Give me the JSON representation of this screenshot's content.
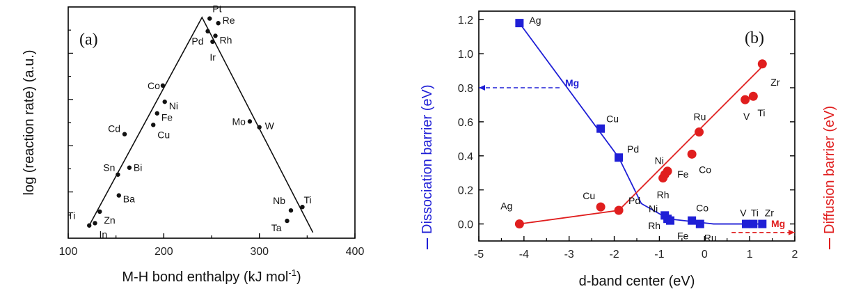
{
  "chart_data": [
    {
      "type": "scatter",
      "panel_label": "(a)",
      "title": "",
      "xlabel_main": "M-H bond enthalpy (kJ mol",
      "xlabel_sup": "-1",
      "xlabel_end": ")",
      "ylabel": "log (reaction rate) (a.u.)",
      "xlim": [
        100,
        400
      ],
      "ylim": [
        0,
        10
      ],
      "xticks": [
        100,
        200,
        300,
        400
      ],
      "volcano_line": [
        [
          122,
          0.55
        ],
        [
          240,
          9.55
        ],
        [
          356,
          0.25
        ]
      ],
      "points": [
        {
          "label": "Ti",
          "x": 122,
          "y": 0.55
        },
        {
          "label": "In",
          "x": 128,
          "y": 0.65
        },
        {
          "label": "Zn",
          "x": 133,
          "y": 1.15
        },
        {
          "label": "Ba",
          "x": 153,
          "y": 1.85
        },
        {
          "label": "Sn",
          "x": 152,
          "y": 2.75
        },
        {
          "label": "Bi",
          "x": 164,
          "y": 3.05
        },
        {
          "label": "Cd",
          "x": 159,
          "y": 4.5
        },
        {
          "label": "Cu",
          "x": 189,
          "y": 4.9
        },
        {
          "label": "Fe",
          "x": 193,
          "y": 5.4
        },
        {
          "label": "Ni",
          "x": 201,
          "y": 5.9
        },
        {
          "label": "Co",
          "x": 199,
          "y": 6.6
        },
        {
          "label": "Pt",
          "x": 248,
          "y": 9.5
        },
        {
          "label": "Re",
          "x": 257,
          "y": 9.3
        },
        {
          "label": "Pd",
          "x": 246,
          "y": 8.95
        },
        {
          "label": "Rh",
          "x": 254,
          "y": 8.75
        },
        {
          "label": "Ir",
          "x": 251,
          "y": 8.5
        },
        {
          "label": "Mo",
          "x": 290,
          "y": 5.05
        },
        {
          "label": "W",
          "x": 300,
          "y": 4.8
        },
        {
          "label": "Nb",
          "x": 333,
          "y": 1.2
        },
        {
          "label": "Ta",
          "x": 329,
          "y": 0.75
        },
        {
          "label": "Ti",
          "x": 345,
          "y": 1.35
        }
      ]
    },
    {
      "type": "line",
      "panel_label": "(b)",
      "title": "",
      "xlabel": "d-band center (eV)",
      "ylabel_left": "Dissociation barrier (eV)",
      "ylabel_right": "Diffusion barrier (eV)",
      "xlim": [
        -5,
        2
      ],
      "ylim": [
        -0.1,
        1.25
      ],
      "xticks": [
        -5,
        -4,
        -3,
        -2,
        -1,
        0,
        1,
        2
      ],
      "yticks": [
        0.0,
        0.2,
        0.4,
        0.6,
        0.8,
        1.0,
        1.2
      ],
      "colors": {
        "dissociation": "#1f1fd6",
        "diffusion": "#e01e1e"
      },
      "series": [
        {
          "name": "Dissociation barrier",
          "marker": "square",
          "color": "#1f1fd6",
          "fit_line": [
            [
              -4.1,
              1.18
            ],
            [
              -1.9,
              0.39
            ],
            [
              -1.4,
              0.12
            ],
            [
              -0.8,
              0.03
            ],
            [
              0.2,
              0.0
            ],
            [
              1.3,
              0.0
            ]
          ],
          "points": [
            {
              "label": "Ag",
              "x": -4.1,
              "y": 1.18
            },
            {
              "label": "Cu",
              "x": -2.3,
              "y": 0.56
            },
            {
              "label": "Pd",
              "x": -1.9,
              "y": 0.39
            },
            {
              "label": "Ni",
              "x": -0.88,
              "y": 0.05
            },
            {
              "label": "Rh",
              "x": -0.82,
              "y": 0.03
            },
            {
              "label": "Fe",
              "x": -0.76,
              "y": 0.02
            },
            {
              "label": "Co",
              "x": -0.28,
              "y": 0.02
            },
            {
              "label": "Ru",
              "x": -0.1,
              "y": 0.0
            },
            {
              "label": "V",
              "x": 0.92,
              "y": 0.0
            },
            {
              "label": "Ti",
              "x": 1.08,
              "y": 0.0
            },
            {
              "label": "Zr",
              "x": 1.28,
              "y": 0.0
            }
          ],
          "reference": {
            "label": "Mg",
            "x_from": -5,
            "x_to": -3.15,
            "y": 0.8
          }
        },
        {
          "name": "Diffusion barrier",
          "marker": "circle",
          "color": "#e01e1e",
          "fit_line": [
            [
              -4.1,
              0.0
            ],
            [
              -1.9,
              0.08
            ],
            [
              1.3,
              0.93
            ]
          ],
          "points": [
            {
              "label": "Ag",
              "x": -4.1,
              "y": 0.0
            },
            {
              "label": "Cu",
              "x": -2.3,
              "y": 0.1
            },
            {
              "label": "Pd",
              "x": -1.9,
              "y": 0.08
            },
            {
              "label": "Rh",
              "x": -0.92,
              "y": 0.27
            },
            {
              "label": "Ni",
              "x": -0.88,
              "y": 0.29
            },
            {
              "label": "Fe",
              "x": -0.82,
              "y": 0.31
            },
            {
              "label": "Co",
              "x": -0.28,
              "y": 0.41
            },
            {
              "label": "Ru",
              "x": -0.12,
              "y": 0.54
            },
            {
              "label": "V",
              "x": 0.9,
              "y": 0.73
            },
            {
              "label": "Ti",
              "x": 1.08,
              "y": 0.75
            },
            {
              "label": "Zr",
              "x": 1.28,
              "y": 0.94
            }
          ],
          "reference": {
            "label": "Mg",
            "x_from": 0.6,
            "x_to": 2,
            "y": -0.05
          }
        }
      ]
    }
  ]
}
